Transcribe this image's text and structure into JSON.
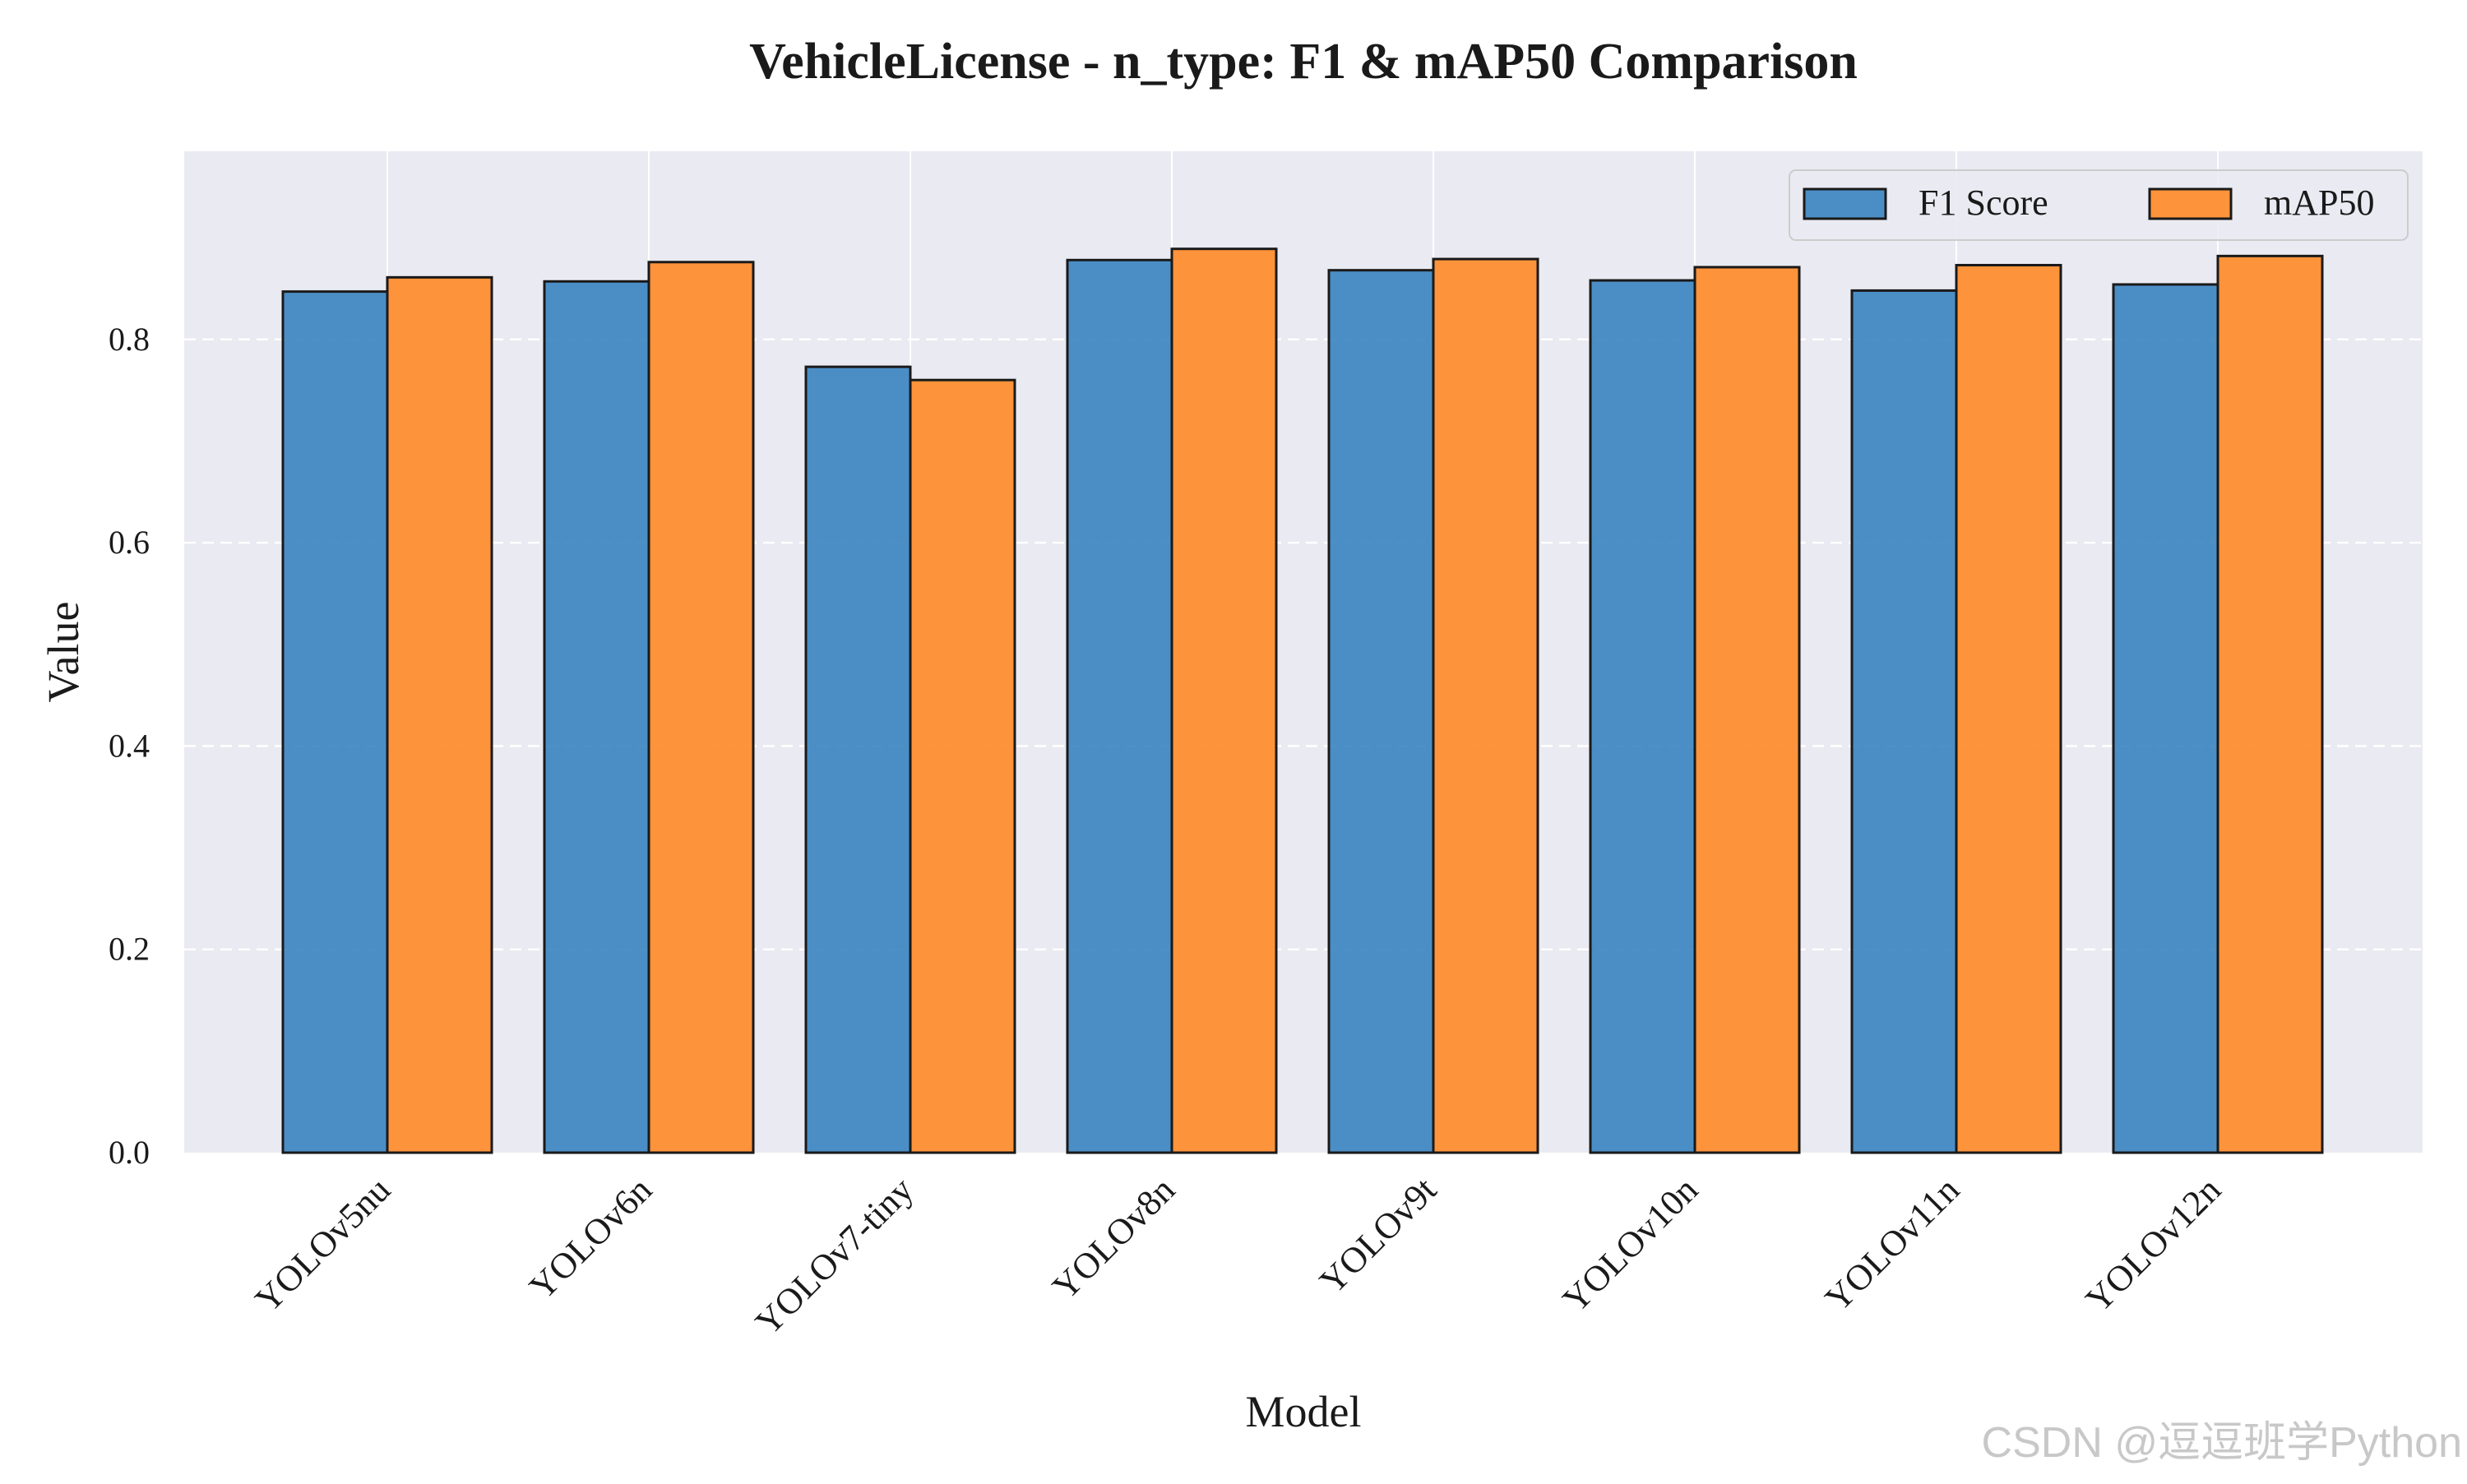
{
  "chart_data": {
    "type": "bar",
    "title": "VehicleLicense - n_type: F1 & mAP50 Comparison",
    "xlabel": "Model",
    "ylabel": "Value",
    "ylim": [
      0,
      0.985
    ],
    "yticks": [
      "0.0",
      "0.2",
      "0.4",
      "0.6",
      "0.8"
    ],
    "ytick_values": [
      0.0,
      0.2,
      0.4,
      0.6,
      0.8
    ],
    "categories": [
      "YOLOv5nu",
      "YOLOv6n",
      "YOLOv7-tiny",
      "YOLOv8n",
      "YOLOv9t",
      "YOLOv10n",
      "YOLOv11n",
      "YOLOv12n"
    ],
    "series": [
      {
        "name": "F1 Score",
        "color": "#3a84c0",
        "values": [
          0.847,
          0.857,
          0.773,
          0.878,
          0.868,
          0.858,
          0.848,
          0.854
        ]
      },
      {
        "name": "mAP50",
        "color": "#ff8a26",
        "values": [
          0.861,
          0.876,
          0.76,
          0.889,
          0.879,
          0.871,
          0.873,
          0.882
        ]
      }
    ],
    "grid": true,
    "legend_position": "top-right",
    "colors": {
      "background": "#eaeaf2",
      "grid": "#ffffff",
      "bar_edge": "#1a1a1a"
    }
  },
  "watermark": "CSDN @逗逗班学Python"
}
